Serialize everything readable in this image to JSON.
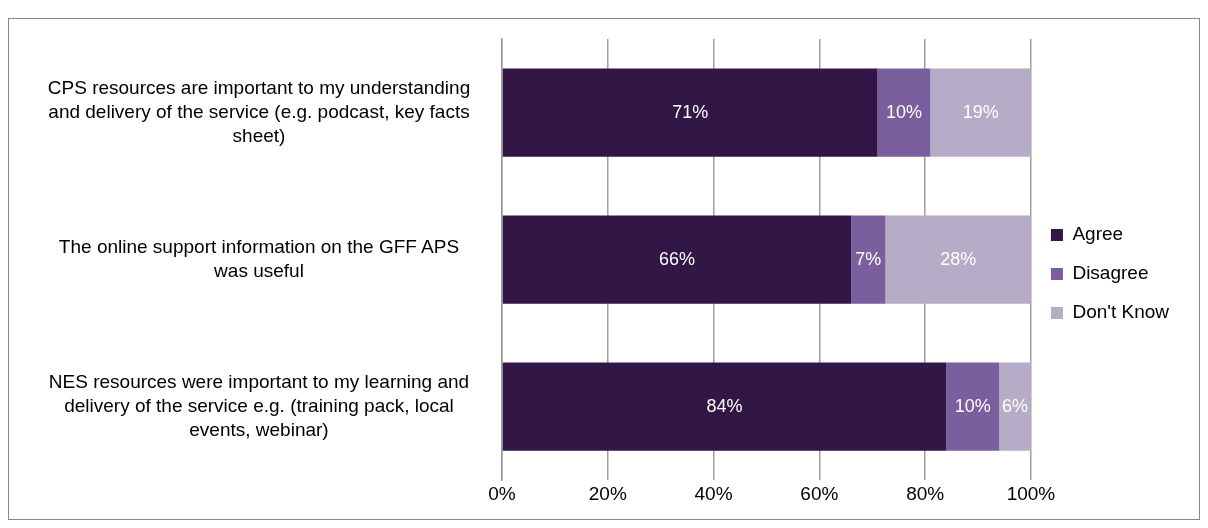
{
  "chart_data": {
    "type": "bar",
    "orientation": "horizontal",
    "stacked": true,
    "categories": [
      "CPS resources are important to my understanding and delivery of the service (e.g. podcast, key facts sheet)",
      "The online support information on the GFF APS was useful",
      "NES resources were important to my learning and delivery of the service e.g. (training pack, local events, webinar)"
    ],
    "series": [
      {
        "name": "Agree",
        "color": "#311646",
        "values": [
          71,
          66,
          84
        ],
        "value_labels": [
          "71%",
          "66%",
          "84%"
        ]
      },
      {
        "name": "Disagree",
        "color": "#7b5e9e",
        "values": [
          10,
          6.5,
          10
        ],
        "value_labels": [
          "10%",
          "7%",
          "10%"
        ]
      },
      {
        "name": "Don't Know",
        "color": "#b7acc7",
        "values": [
          19,
          27.5,
          6
        ],
        "value_labels": [
          "19%",
          "28%",
          "6%"
        ]
      }
    ],
    "xlim": [
      0,
      100
    ],
    "xticks": [
      {
        "value": 0,
        "label": "0%"
      },
      {
        "value": 20,
        "label": "20%"
      },
      {
        "value": 40,
        "label": "40%"
      },
      {
        "value": 60,
        "label": "60%"
      },
      {
        "value": 80,
        "label": "80%"
      },
      {
        "value": 100,
        "label": "100%"
      }
    ],
    "grid": "x",
    "legend": "right"
  }
}
